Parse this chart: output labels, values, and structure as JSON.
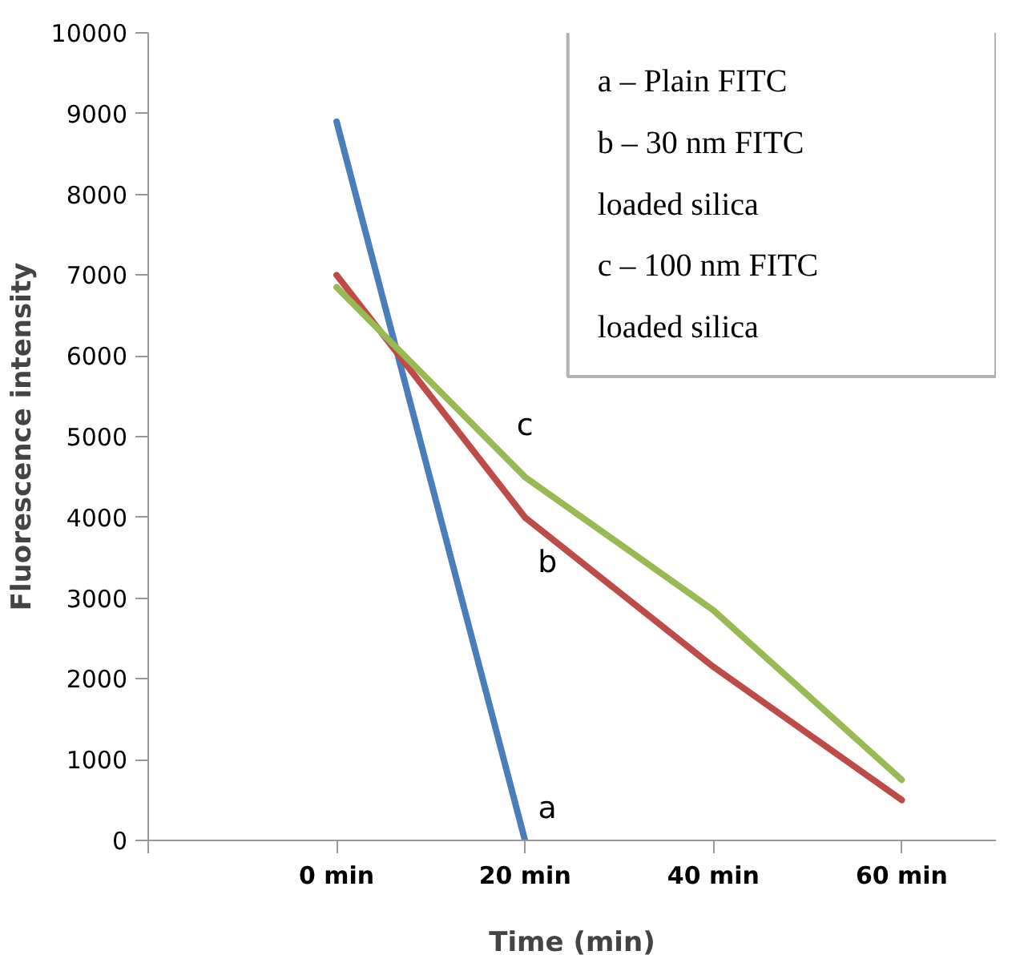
{
  "chart_data": {
    "type": "line",
    "xlabel": "Time (min)",
    "ylabel": "Fluorescence intensity",
    "xlim": [
      -20,
      70
    ],
    "xticks": [
      {
        "value": -20,
        "label": null
      },
      {
        "value": 0,
        "label": "0 min"
      },
      {
        "value": 20,
        "label": "20 min"
      },
      {
        "value": 40,
        "label": "40 min"
      },
      {
        "value": 60,
        "label": "60 min"
      }
    ],
    "ylim": [
      0,
      10000
    ],
    "yticks": [
      0,
      1000,
      2000,
      3000,
      4000,
      5000,
      6000,
      7000,
      8000,
      9000,
      10000
    ],
    "series": [
      {
        "name": "a",
        "color": "#4a7ebb",
        "x": [
          0,
          20
        ],
        "values": [
          8900,
          0
        ]
      },
      {
        "name": "b",
        "color": "#be4b48",
        "x": [
          0,
          20,
          40,
          60
        ],
        "values": [
          7000,
          4000,
          2150,
          500
        ]
      },
      {
        "name": "c",
        "color": "#98b954",
        "x": [
          0,
          20,
          40,
          60
        ],
        "values": [
          6850,
          4500,
          2850,
          750
        ]
      }
    ],
    "annotations": [
      "a – Plain FITC",
      "b – 30 nm FITC loaded silica",
      "c – 100 nm FITC loaded silica"
    ],
    "grid": false,
    "marker": "none",
    "line_style": "solid"
  }
}
